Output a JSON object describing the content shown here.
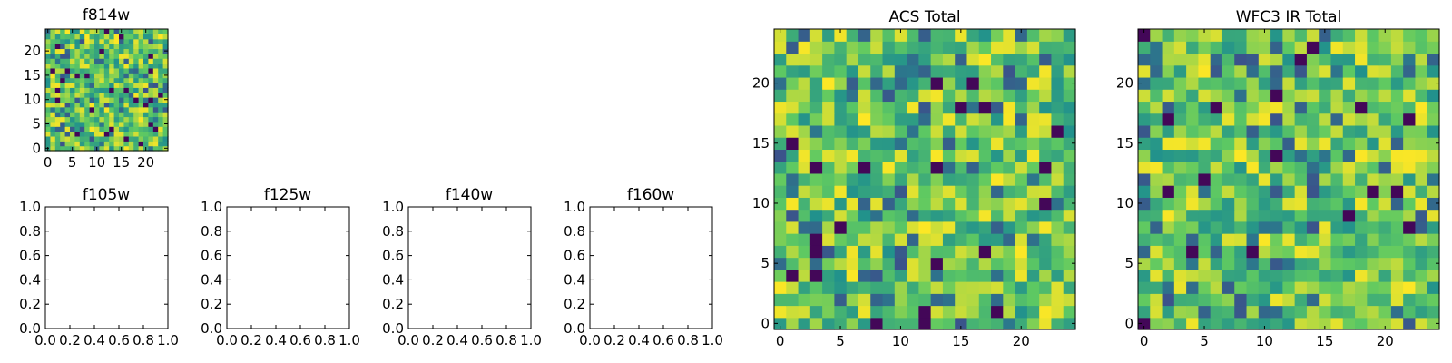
{
  "figure": {
    "background": "#ffffff",
    "colormap": "viridis",
    "colormap_stops": [
      "#440154",
      "#3b528b",
      "#21918c",
      "#5ec962",
      "#fde725"
    ]
  },
  "chart_data": [
    {
      "id": "f814w",
      "type": "heatmap",
      "title": "f814w",
      "grid_size": [
        25,
        25
      ],
      "xlim": [
        -0.5,
        24.5
      ],
      "ylim": [
        -0.5,
        24.5
      ],
      "xticks": [
        0,
        5,
        10,
        15,
        20
      ],
      "yticks": [
        0,
        5,
        10,
        15,
        20
      ],
      "value_range": [
        0,
        1
      ],
      "seed": 814
    },
    {
      "id": "f105w",
      "type": "empty",
      "title": "f105w",
      "xlim": [
        0,
        1
      ],
      "ylim": [
        0,
        1
      ],
      "xticks": [
        "0.0",
        "0.2",
        "0.4",
        "0.6",
        "0.8",
        "1.0"
      ],
      "yticks": [
        "0.0",
        "0.2",
        "0.4",
        "0.6",
        "0.8",
        "1.0"
      ]
    },
    {
      "id": "f125w",
      "type": "empty",
      "title": "f125w",
      "xlim": [
        0,
        1
      ],
      "ylim": [
        0,
        1
      ],
      "xticks": [
        "0.0",
        "0.2",
        "0.4",
        "0.6",
        "0.8",
        "1.0"
      ],
      "yticks": [
        "0.0",
        "0.2",
        "0.4",
        "0.6",
        "0.8",
        "1.0"
      ]
    },
    {
      "id": "f140w",
      "type": "empty",
      "title": "f140w",
      "xlim": [
        0,
        1
      ],
      "ylim": [
        0,
        1
      ],
      "xticks": [
        "0.0",
        "0.2",
        "0.4",
        "0.6",
        "0.8",
        "1.0"
      ],
      "yticks": [
        "0.0",
        "0.2",
        "0.4",
        "0.6",
        "0.8",
        "1.0"
      ]
    },
    {
      "id": "f160w",
      "type": "empty",
      "title": "f160w",
      "xlim": [
        0,
        1
      ],
      "ylim": [
        0,
        1
      ],
      "xticks": [
        "0.0",
        "0.2",
        "0.4",
        "0.6",
        "0.8",
        "1.0"
      ],
      "yticks": [
        "0.0",
        "0.2",
        "0.4",
        "0.6",
        "0.8",
        "1.0"
      ]
    },
    {
      "id": "acs-total",
      "type": "heatmap",
      "title": "ACS Total",
      "grid_size": [
        25,
        25
      ],
      "xlim": [
        -0.5,
        24.5
      ],
      "ylim": [
        -0.5,
        24.5
      ],
      "xticks": [
        0,
        5,
        10,
        15,
        20
      ],
      "yticks": [
        0,
        5,
        10,
        15,
        20
      ],
      "value_range": [
        0,
        1
      ],
      "seed": 1001
    },
    {
      "id": "wfc3-ir-total",
      "type": "heatmap",
      "title": "WFC3 IR Total",
      "grid_size": [
        25,
        25
      ],
      "xlim": [
        -0.5,
        24.5
      ],
      "ylim": [
        -0.5,
        24.5
      ],
      "xticks": [
        0,
        5,
        10,
        15,
        20
      ],
      "yticks": [
        0,
        5,
        10,
        15,
        20
      ],
      "value_range": [
        0,
        1
      ],
      "seed": 2002
    }
  ]
}
